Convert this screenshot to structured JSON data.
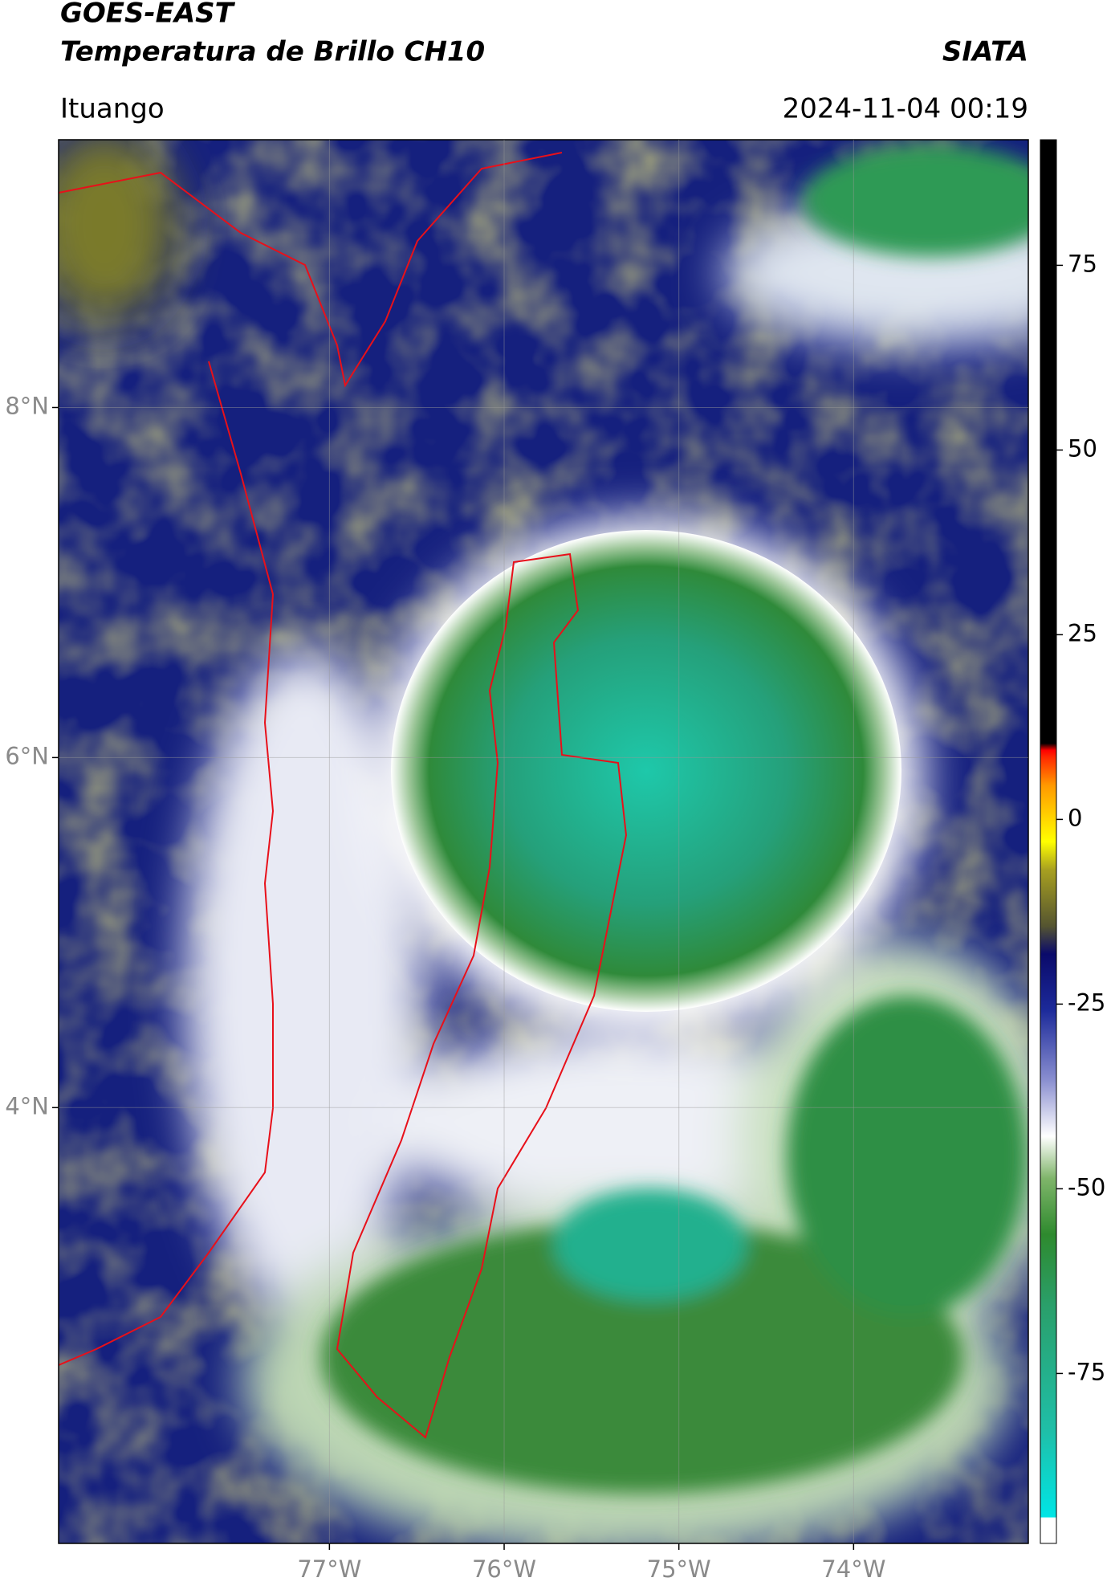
{
  "chart_data": {
    "type": "map",
    "title": "GOES-EAST",
    "subtitle": "Temperatura de Brillo CH10",
    "source": "SIATA",
    "region": "Ituango",
    "datetime": "2024-11-04 00:19",
    "xlim": [
      -78.55,
      -73.0
    ],
    "ylim": [
      1.51,
      9.53
    ],
    "xticks": [
      {
        "value": -77,
        "label": "77°W"
      },
      {
        "value": -76,
        "label": "76°W"
      },
      {
        "value": -75,
        "label": "75°W"
      },
      {
        "value": -74,
        "label": "74°W"
      }
    ],
    "yticks": [
      {
        "value": 4,
        "label": "4°N"
      },
      {
        "value": 6,
        "label": "6°N"
      },
      {
        "value": 8,
        "label": "8°N"
      }
    ],
    "grid": true,
    "colorbar": {
      "lim": [
        -98,
        92
      ],
      "ticks": [
        -75,
        -50,
        -25,
        0,
        25,
        50,
        75
      ]
    }
  }
}
